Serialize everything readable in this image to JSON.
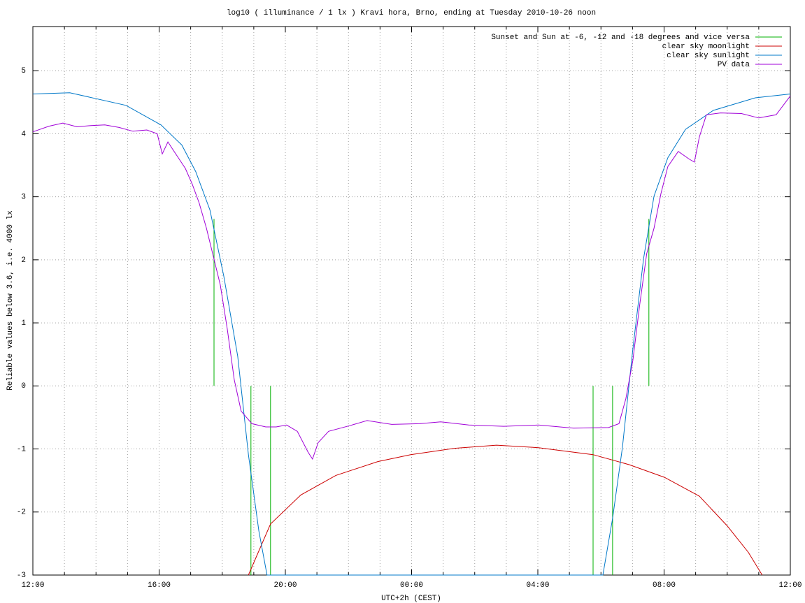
{
  "chart_data": {
    "type": "line",
    "title": "log10 ( illuminance / 1 lx ) Kravi hora, Brno, ending at Tuesday 2010-10-26 noon",
    "ylabel": "Reliable values below 3.6, i.e. 4000 lx",
    "xlabel": "UTC+2h (CEST)",
    "xlim": [
      0,
      24
    ],
    "ylim": [
      -3,
      5.7
    ],
    "xticks": [
      {
        "value": 0,
        "label": "12:00"
      },
      {
        "value": 4,
        "label": "16:00"
      },
      {
        "value": 8,
        "label": "20:00"
      },
      {
        "value": 12,
        "label": "00:00"
      },
      {
        "value": 16,
        "label": "04:00"
      },
      {
        "value": 20,
        "label": "08:00"
      },
      {
        "value": 24,
        "label": "12:00"
      }
    ],
    "xminorticks": [
      1,
      2,
      3,
      5,
      6,
      7,
      9,
      10,
      11,
      13,
      14,
      15,
      17,
      18,
      19,
      21,
      22,
      23
    ],
    "yticks": [
      -3,
      -2,
      -1,
      0,
      1,
      2,
      3,
      4,
      5
    ],
    "grid": true,
    "legend": "upper right",
    "series": [
      {
        "name": "Sunset and Sun at -6, -12 and -18 degrees and vice versa",
        "color": "#00b000",
        "x": [
          5.74,
          5.74,
          null,
          6.91,
          6.91,
          null,
          7.53,
          7.53,
          null,
          17.75,
          17.75,
          null,
          18.37,
          18.37,
          null,
          19.52,
          19.52
        ],
        "values": [
          2.65,
          0,
          null,
          0,
          -3,
          null,
          0,
          -3,
          null,
          0,
          -3,
          null,
          0,
          -3,
          null,
          0,
          2.65
        ]
      },
      {
        "name": "clear sky moonlight",
        "color": "#cc0000",
        "x": [
          6.83,
          7.53,
          8.49,
          9.6,
          10.93,
          11.97,
          13.36,
          14.69,
          16.02,
          17.75,
          18.9,
          20.01,
          21.12,
          22.0,
          22.67,
          23.11
        ],
        "values": [
          -3,
          -2.19,
          -1.73,
          -1.42,
          -1.2,
          -1.09,
          -0.99,
          -0.94,
          -0.98,
          -1.09,
          -1.25,
          -1.45,
          -1.75,
          -2.22,
          -2.64,
          -3
        ]
      },
      {
        "name": "clear sky sunlight",
        "color": "#0078c8",
        "x": [
          0,
          1.17,
          2.95,
          4.06,
          4.72,
          5.16,
          5.61,
          6.05,
          6.49,
          6.83,
          7.16,
          7.42,
          18.06,
          18.37,
          18.68,
          19.01,
          19.35,
          19.68,
          20.12,
          20.68,
          21.56,
          22.89,
          24
        ],
        "values": [
          4.63,
          4.65,
          4.45,
          4.14,
          3.82,
          3.4,
          2.79,
          1.74,
          0.47,
          -1.09,
          -2.3,
          -3,
          -3,
          -2.1,
          -0.98,
          0.58,
          2.02,
          3.01,
          3.62,
          4.07,
          4.37,
          4.57,
          4.63
        ]
      },
      {
        "name": "PV data",
        "color": "#a000d8",
        "x": [
          0,
          0.51,
          0.95,
          1.4,
          1.84,
          2.28,
          2.73,
          3.17,
          3.61,
          3.94,
          4.1,
          4.28,
          4.5,
          4.83,
          5.05,
          5.27,
          5.5,
          5.72,
          5.94,
          6.16,
          6.38,
          6.6,
          6.94,
          7.38,
          7.71,
          8.04,
          8.38,
          8.72,
          8.86,
          9.04,
          9.37,
          10.04,
          10.59,
          11.37,
          12.25,
          12.92,
          13.81,
          14.92,
          16.02,
          17.13,
          18.24,
          18.57,
          18.79,
          19.01,
          19.23,
          19.45,
          19.68,
          19.9,
          20.12,
          20.45,
          20.79,
          20.96,
          21.12,
          21.34,
          21.79,
          22.45,
          23.0,
          23.55,
          24
        ],
        "values": [
          4.03,
          4.12,
          4.17,
          4.11,
          4.13,
          4.14,
          4.1,
          4.04,
          4.06,
          4.0,
          3.68,
          3.87,
          3.7,
          3.45,
          3.2,
          2.9,
          2.5,
          2.05,
          1.6,
          0.9,
          0.1,
          -0.4,
          -0.6,
          -0.65,
          -0.65,
          -0.62,
          -0.72,
          -1.05,
          -1.16,
          -0.9,
          -0.72,
          -0.63,
          -0.55,
          -0.61,
          -0.6,
          -0.57,
          -0.62,
          -0.64,
          -0.62,
          -0.67,
          -0.66,
          -0.6,
          -0.2,
          0.4,
          1.3,
          2.1,
          2.5,
          3.05,
          3.48,
          3.72,
          3.6,
          3.55,
          3.95,
          4.3,
          4.33,
          4.32,
          4.25,
          4.3,
          4.6
        ]
      }
    ]
  }
}
